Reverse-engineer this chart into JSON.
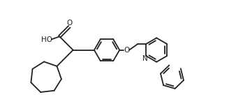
{
  "background_color": "#ffffff",
  "line_color": "#222222",
  "line_width": 1.3,
  "figsize": [
    3.28,
    1.59
  ],
  "dpi": 100,
  "xlim": [
    0,
    10.5
  ],
  "ylim": [
    0,
    5.0
  ]
}
